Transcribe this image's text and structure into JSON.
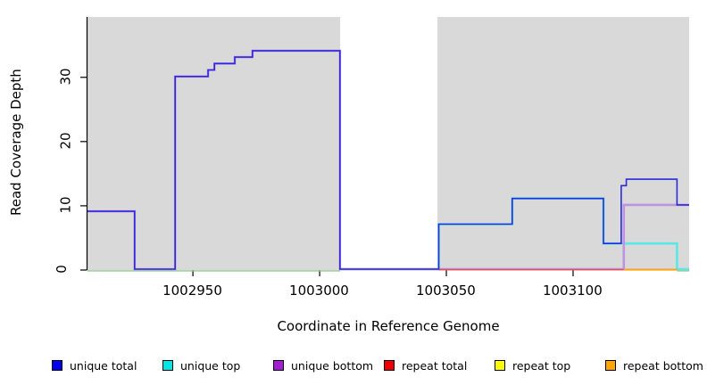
{
  "chart_data": {
    "type": "line",
    "step": true,
    "title": "",
    "xlabel": "Coordinate in Reference Genome",
    "ylabel": "Read Coverage Depth",
    "x_ticks": [
      1002950,
      1003000,
      1003050,
      1003100
    ],
    "y_ticks": [
      0,
      10,
      20,
      30
    ],
    "xlim": [
      1002908.4,
      1003145.8
    ],
    "ylim": [
      0,
      39.4
    ],
    "grid": false,
    "panel_color": "#D9D9D9",
    "shaded_regions": [
      [
        1002908.4,
        1003008.1
      ],
      [
        1003046.5,
        1003145.8
      ]
    ],
    "legend_position": "bottom",
    "series": [
      {
        "name": "unique total",
        "legend_color": "#0000EE",
        "line_color": "#2B2BDC",
        "points": [
          [
            1002908.4,
            9
          ],
          [
            1002927,
            0
          ],
          [
            1002943,
            30
          ],
          [
            1002956,
            31
          ],
          [
            1002958.5,
            32
          ],
          [
            1002966.5,
            33
          ],
          [
            1002973.5,
            34
          ],
          [
            1003008,
            0
          ],
          [
            1003047,
            7
          ],
          [
            1003076,
            11
          ],
          [
            1003112,
            4
          ],
          [
            1003119,
            13
          ],
          [
            1003121,
            14
          ],
          [
            1003141,
            10
          ]
        ],
        "x_end": 1003145.8
      },
      {
        "name": "unique top",
        "legend_color": "#00E6E6",
        "line_color": "#5CE6E6",
        "points": [
          [
            1003008,
            0
          ],
          [
            1003047,
            7
          ],
          [
            1003076,
            11
          ],
          [
            1003112,
            4
          ],
          [
            1003141,
            0
          ]
        ],
        "x_end": 1003145.8
      },
      {
        "name": "unique bottom",
        "legend_color": "#A21FD1",
        "line_color": "#BE93E0",
        "points": [
          [
            1002908.4,
            9
          ],
          [
            1002927,
            0
          ],
          [
            1002943,
            30
          ],
          [
            1002956,
            31
          ],
          [
            1002958.5,
            32
          ],
          [
            1002966.5,
            33
          ],
          [
            1002973.5,
            34
          ],
          [
            1003008,
            0
          ],
          [
            1003120,
            10
          ]
        ],
        "x_end": 1003145.8
      },
      {
        "name": "repeat total",
        "legend_color": "#EE0000",
        "line_color": "#D9536F",
        "points": [
          [
            1003047,
            0
          ]
        ],
        "x_end": 1003141
      },
      {
        "name": "repeat top",
        "legend_color": "#FFFF00",
        "line_color": "#E8D800",
        "points": [
          [
            1003047,
            0
          ]
        ],
        "x_end": 1003141
      },
      {
        "name": "repeat bottom",
        "legend_color": "#FFA500",
        "line_color": "#FFA319",
        "points": [
          [
            1003120,
            0
          ]
        ],
        "x_end": 1003141
      }
    ],
    "baseline": {
      "color": "#8CC98C",
      "segments": [
        [
          1002908.4,
          1003008.1
        ],
        [
          1003141,
          1003145.8
        ]
      ]
    }
  }
}
